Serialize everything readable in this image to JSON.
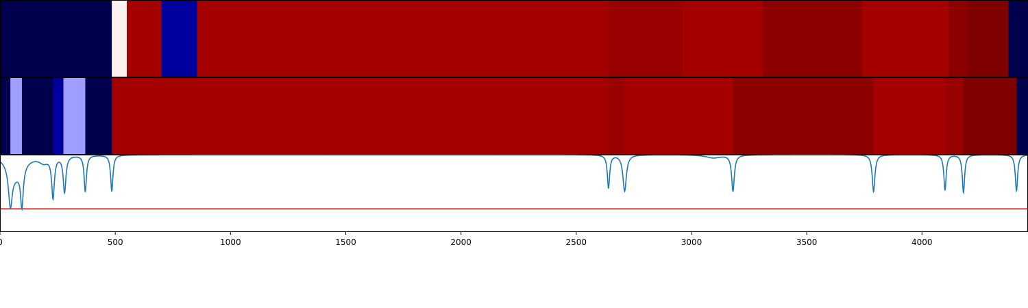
{
  "chart_data": [
    {
      "type": "heatmap",
      "panel": "segment-row-1",
      "cmap": "seismic",
      "x_range": [
        0,
        4460
      ],
      "segments": [
        {
          "start": 0,
          "end": 485,
          "color": "#00004c"
        },
        {
          "start": 485,
          "end": 550,
          "color": "#fff0f0"
        },
        {
          "start": 550,
          "end": 700,
          "color": "#a40000"
        },
        {
          "start": 700,
          "end": 855,
          "color": "#00009e"
        },
        {
          "start": 855,
          "end": 2640,
          "color": "#a40000"
        },
        {
          "start": 2640,
          "end": 2960,
          "color": "#990000"
        },
        {
          "start": 2960,
          "end": 3310,
          "color": "#a40000"
        },
        {
          "start": 3310,
          "end": 3740,
          "color": "#8c0000"
        },
        {
          "start": 3740,
          "end": 4115,
          "color": "#a40000"
        },
        {
          "start": 4115,
          "end": 4200,
          "color": "#8c0000"
        },
        {
          "start": 4200,
          "end": 4375,
          "color": "#7f0000"
        },
        {
          "start": 4375,
          "end": 4460,
          "color": "#00004c"
        }
      ]
    },
    {
      "type": "heatmap",
      "panel": "segment-row-2",
      "cmap": "seismic",
      "x_range": [
        0,
        4460
      ],
      "segments": [
        {
          "start": 0,
          "end": 45,
          "color": "#00004c"
        },
        {
          "start": 45,
          "end": 95,
          "color": "#9e9eff"
        },
        {
          "start": 95,
          "end": 230,
          "color": "#00004c"
        },
        {
          "start": 230,
          "end": 275,
          "color": "#00009e"
        },
        {
          "start": 275,
          "end": 370,
          "color": "#9e9eff"
        },
        {
          "start": 370,
          "end": 485,
          "color": "#00004c"
        },
        {
          "start": 485,
          "end": 2640,
          "color": "#a40000"
        },
        {
          "start": 2640,
          "end": 2710,
          "color": "#990000"
        },
        {
          "start": 2710,
          "end": 3180,
          "color": "#a40000"
        },
        {
          "start": 3180,
          "end": 3790,
          "color": "#8c0000"
        },
        {
          "start": 3790,
          "end": 4100,
          "color": "#a40000"
        },
        {
          "start": 4100,
          "end": 4180,
          "color": "#990000"
        },
        {
          "start": 4180,
          "end": 4410,
          "color": "#7f0000"
        },
        {
          "start": 4410,
          "end": 4460,
          "color": "#00004c"
        }
      ]
    },
    {
      "type": "line",
      "panel": "signal",
      "xlim": [
        0,
        4460
      ],
      "ylim": [
        0,
        1
      ],
      "xticks": [
        "0",
        "500",
        "1000",
        "1500",
        "2000",
        "2500",
        "3000",
        "3500",
        "4000"
      ],
      "xtick_values": [
        0,
        500,
        1000,
        1500,
        2000,
        2500,
        3000,
        3500,
        4000
      ],
      "series": [
        {
          "color": "#1f77b4",
          "baseline": 1.0,
          "dips": [
            {
              "x": 45,
              "depth": 0.5,
              "width": 10
            },
            {
              "x": 95,
              "depth": 0.5,
              "width": 7
            },
            {
              "x": 70,
              "depth": 0.25,
              "width": 40
            },
            {
              "x": 190,
              "depth": 0.08,
              "width": 25
            },
            {
              "x": 230,
              "depth": 0.53,
              "width": 7
            },
            {
              "x": 280,
              "depth": 0.47,
              "width": 7
            },
            {
              "x": 370,
              "depth": 0.47,
              "width": 6
            },
            {
              "x": 485,
              "depth": 0.47,
              "width": 6
            },
            {
              "x": 2640,
              "depth": 0.43,
              "width": 6
            },
            {
              "x": 2710,
              "depth": 0.47,
              "width": 9
            },
            {
              "x": 3095,
              "depth": 0.04,
              "width": 40
            },
            {
              "x": 3180,
              "depth": 0.47,
              "width": 7
            },
            {
              "x": 3790,
              "depth": 0.48,
              "width": 7
            },
            {
              "x": 4100,
              "depth": 0.46,
              "width": 6
            },
            {
              "x": 4180,
              "depth": 0.49,
              "width": 6
            },
            {
              "x": 4410,
              "depth": 0.47,
              "width": 6
            }
          ]
        }
      ],
      "hline": {
        "y": 0.3,
        "color": "#ff0000"
      }
    }
  ]
}
